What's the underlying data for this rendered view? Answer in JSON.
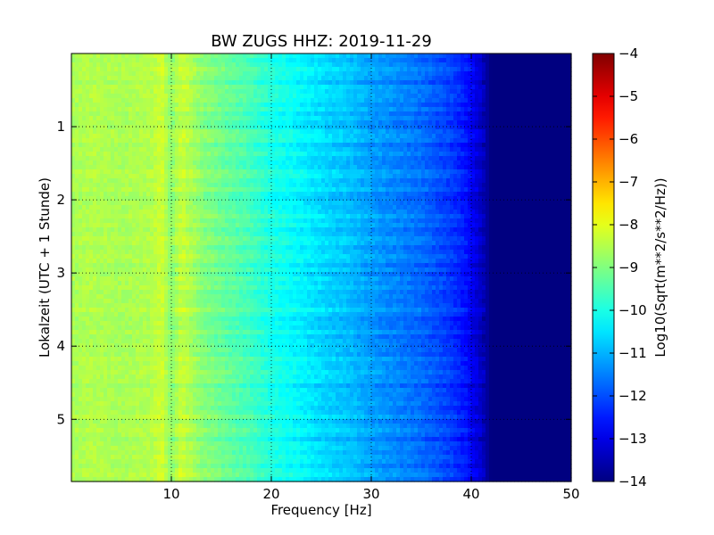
{
  "chart_data": {
    "type": "heatmap",
    "title": "BW ZUGS HHZ: 2019-11-29",
    "xlabel": "Frequency [Hz]",
    "ylabel": "Lokalzeit (UTC + 1 Stunde)",
    "xlim": [
      0,
      50
    ],
    "ylim": [
      5.85,
      0
    ],
    "x_ticks": [
      10,
      20,
      30,
      40,
      50
    ],
    "x_tick_labels": [
      "10",
      "20",
      "30",
      "40",
      "50"
    ],
    "y_ticks": [
      1,
      2,
      3,
      4,
      5
    ],
    "y_tick_labels": [
      "1",
      "2",
      "3",
      "4",
      "5"
    ],
    "grid": true,
    "colormap": "jet",
    "colorbar": {
      "label": "Log10(Sqrt(m**2/s**2/Hz))",
      "range": [
        -14,
        -4
      ],
      "ticks": [
        -4,
        -5,
        -6,
        -7,
        -8,
        -9,
        -10,
        -11,
        -12,
        -13,
        -14
      ],
      "tick_labels": [
        "−4",
        "−5",
        "−6",
        "−7",
        "−8",
        "−9",
        "−10",
        "−11",
        "−12",
        "−13",
        "−14"
      ]
    },
    "frequency_profile": {
      "frequency_hz": [
        0,
        2,
        5,
        8,
        9,
        10,
        11,
        13,
        15,
        18,
        20,
        22,
        25,
        28,
        30,
        33,
        35,
        38,
        39.5,
        41,
        42,
        50
      ],
      "log10_psd": [
        -8.6,
        -8.5,
        -8.6,
        -8.5,
        -8.2,
        -8.9,
        -8.3,
        -8.9,
        -9.2,
        -9.6,
        -10.0,
        -10.2,
        -10.6,
        -10.9,
        -11.2,
        -11.5,
        -11.7,
        -12.2,
        -12.6,
        -13.3,
        -14.0,
        -14.0
      ]
    }
  }
}
